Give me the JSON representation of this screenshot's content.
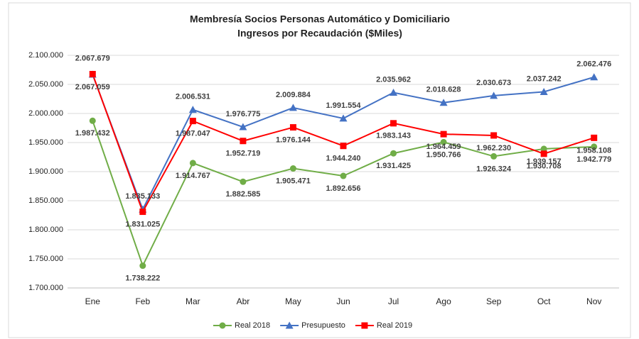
{
  "chart_data": {
    "type": "line",
    "title": "Membresía Socios Personas Automático y Domiciliario",
    "subtitle": "Ingresos por Recaudación ($Miles)",
    "categories": [
      "Ene",
      "Feb",
      "Mar",
      "Abr",
      "May",
      "Jun",
      "Jul",
      "Ago",
      "Sep",
      "Oct",
      "Nov"
    ],
    "series": [
      {
        "name": "Real 2018",
        "color": "#70ad47",
        "marker": "circle",
        "values": [
          1987432,
          1738222,
          1914767,
          1882585,
          1905471,
          1892656,
          1931425,
          1950766,
          1926324,
          1939157,
          1942779
        ],
        "value_labels": [
          "1.987.432",
          "1.738.222",
          "1.914.767",
          "1.882.585",
          "1.905.471",
          "1.892.656",
          "1.931.425",
          "1.950.766",
          "1.926.324",
          "1.939.157",
          "1.942.779"
        ]
      },
      {
        "name": "Presupuesto",
        "color": "#4472c4",
        "marker": "triangle",
        "values": [
          2067059,
          1835133,
          2006531,
          1976775,
          2009884,
          1991554,
          2035962,
          2018628,
          2030673,
          2037242,
          2062476
        ],
        "value_labels": [
          "2.067.059",
          "1.835.133",
          "2.006.531",
          "1.976.775",
          "2.009.884",
          "1.991.554",
          "2.035.962",
          "2.018.628",
          "2.030.673",
          "2.037.242",
          "2.062.476"
        ]
      },
      {
        "name": "Real 2019",
        "color": "#ff0000",
        "marker": "square",
        "values": [
          2067679,
          1831025,
          1987047,
          1952719,
          1976144,
          1944240,
          1983143,
          1964459,
          1962230,
          1930708,
          1958108
        ],
        "value_labels": [
          "2.067.679",
          "1.831.025",
          "1.987.047",
          "1.952.719",
          "1.976.144",
          "1.944.240",
          "1.983.143",
          "1.964.459",
          "1.962.230",
          "1.930.708",
          "1.958.108"
        ]
      }
    ],
    "ylim": [
      1700000,
      2100000
    ],
    "yticks": [
      {
        "value": 1700000,
        "label": "1.700.000"
      },
      {
        "value": 1750000,
        "label": "1.750.000"
      },
      {
        "value": 1800000,
        "label": "1.800.000"
      },
      {
        "value": 1850000,
        "label": "1.850.000"
      },
      {
        "value": 1900000,
        "label": "1.900.000"
      },
      {
        "value": 1950000,
        "label": "1.950.000"
      },
      {
        "value": 2000000,
        "label": "2.000.000"
      },
      {
        "value": 2050000,
        "label": "2.050.000"
      },
      {
        "value": 2100000,
        "label": "2.100.000"
      }
    ],
    "grid": true,
    "legend": "bottom"
  }
}
